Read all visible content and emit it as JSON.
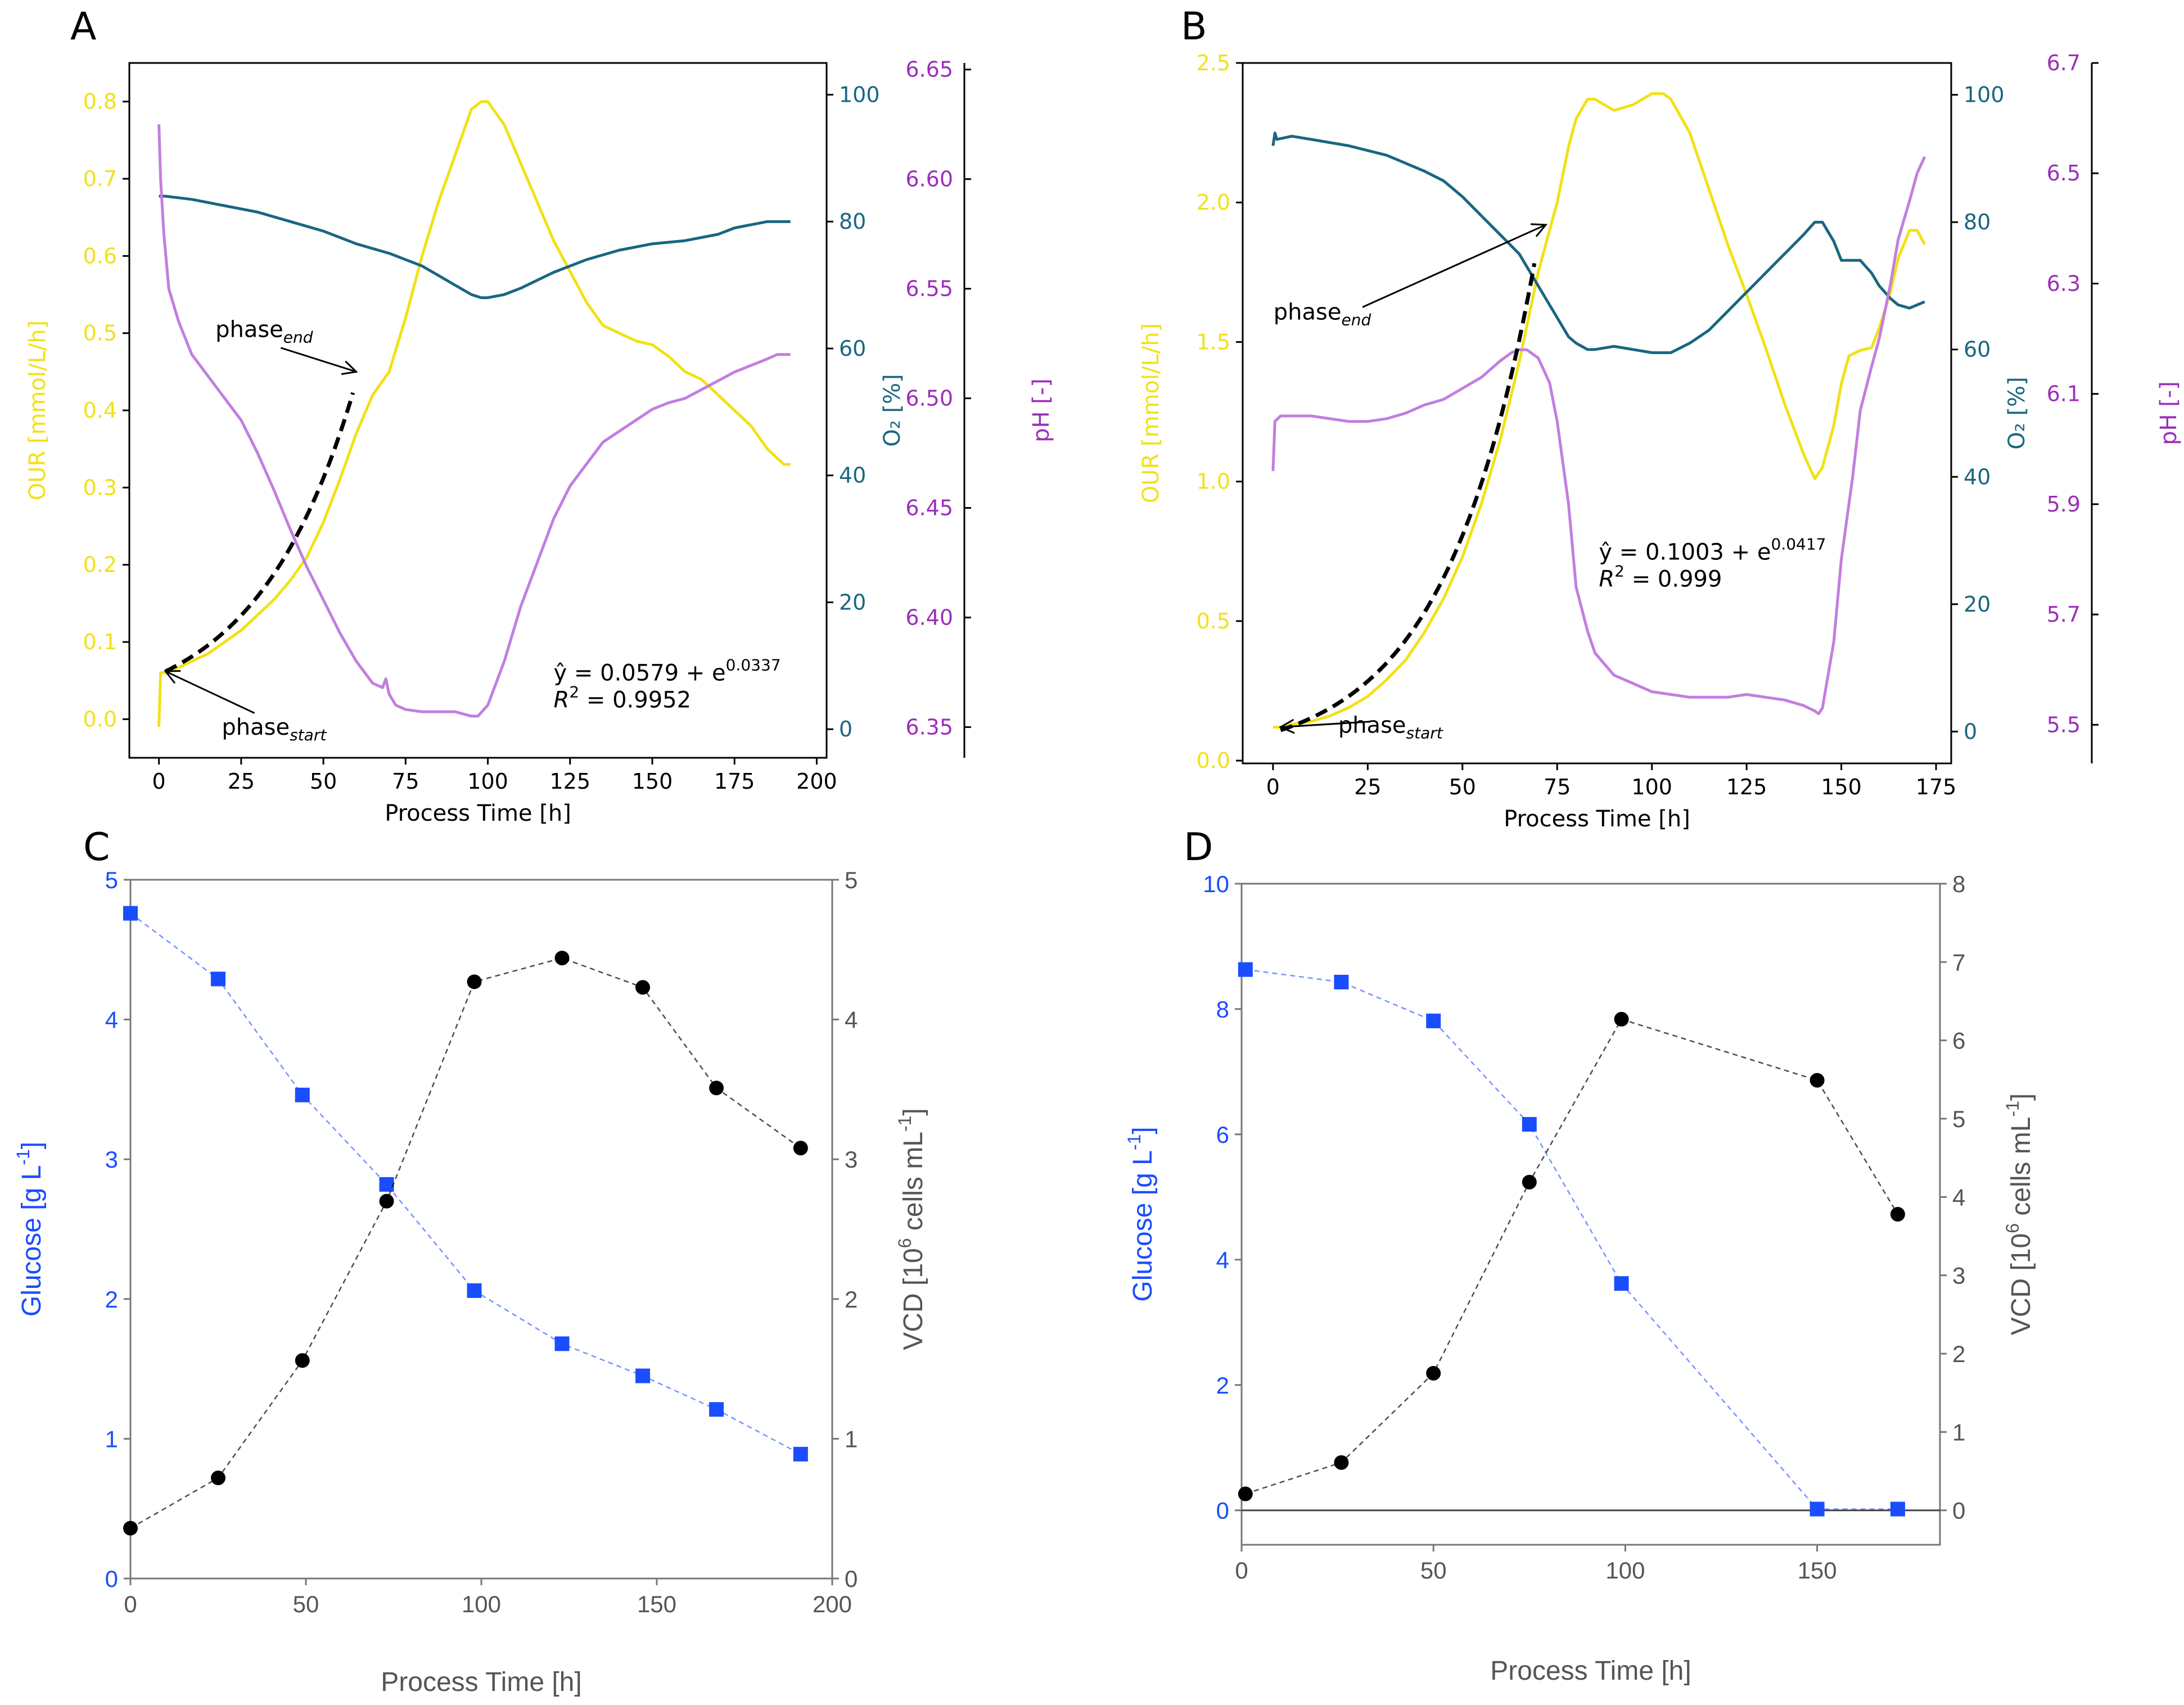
{
  "figure": {
    "panel_labels": [
      "A",
      "B",
      "C",
      "D"
    ]
  },
  "colors": {
    "our": "#f2e116",
    "o2": "#1a6680",
    "ph": "#c27ee0",
    "ph_axis": "#9b2fb9",
    "glucose": "#1a4dff",
    "vcd": "#000000",
    "vcd_axis": "#555555",
    "fit": "#000000"
  },
  "chart_data": [
    {
      "panel": "A",
      "type": "line",
      "xlabel": "Process Time [h]",
      "ylabel_left": "OUR [mmol/L/h]",
      "ylabel_right1": "O₂ [%]",
      "ylabel_right2": "pH [-]",
      "xlim": [
        -9,
        203
      ],
      "ylim_left": [
        -0.05,
        0.85
      ],
      "ylim_right1": [
        -4.5,
        105
      ],
      "ylim_right2": [
        6.336,
        6.653
      ],
      "xticks": [
        "0",
        "25",
        "50",
        "75",
        "100",
        "125",
        "150",
        "175",
        "200"
      ],
      "xtick_values": [
        0,
        25,
        50,
        75,
        100,
        125,
        150,
        175,
        200
      ],
      "yticks_left": [
        "0.0",
        "0.1",
        "0.2",
        "0.3",
        "0.4",
        "0.5",
        "0.6",
        "0.7",
        "0.8"
      ],
      "ytick_values_left": [
        0,
        0.1,
        0.2,
        0.3,
        0.4,
        0.5,
        0.6,
        0.7,
        0.8
      ],
      "yticks_right1": [
        "0",
        "20",
        "40",
        "60",
        "80",
        "100"
      ],
      "ytick_values_right1": [
        0,
        20,
        40,
        60,
        80,
        100
      ],
      "yticks_right2": [
        "6.35",
        "6.40",
        "6.45",
        "6.50",
        "6.55",
        "6.60",
        "6.65"
      ],
      "ytick_values_right2": [
        6.35,
        6.4,
        6.45,
        6.5,
        6.55,
        6.6,
        6.65
      ],
      "series": [
        {
          "name": "OUR",
          "axis": "left",
          "x": [
            0,
            0.5,
            2,
            5,
            10,
            15,
            20,
            25,
            30,
            35,
            40,
            45,
            50,
            55,
            60,
            65,
            70,
            75,
            80,
            85,
            90,
            95,
            98,
            100,
            105,
            110,
            115,
            120,
            125,
            130,
            135,
            140,
            145,
            150,
            155,
            160,
            165,
            170,
            175,
            180,
            185,
            190,
            192
          ],
          "values": [
            -0.01,
            0.06,
            0.06,
            0.065,
            0.075,
            0.085,
            0.1,
            0.115,
            0.135,
            0.155,
            0.18,
            0.21,
            0.255,
            0.31,
            0.37,
            0.42,
            0.45,
            0.52,
            0.6,
            0.67,
            0.73,
            0.79,
            0.8,
            0.8,
            0.77,
            0.72,
            0.67,
            0.62,
            0.58,
            0.54,
            0.51,
            0.5,
            0.49,
            0.485,
            0.47,
            0.45,
            0.44,
            0.42,
            0.4,
            0.38,
            0.35,
            0.33,
            0.33
          ]
        },
        {
          "name": "O2",
          "axis": "right1",
          "x": [
            0,
            2,
            10,
            20,
            30,
            40,
            50,
            60,
            70,
            80,
            85,
            90,
            95,
            98,
            100,
            105,
            110,
            120,
            130,
            140,
            150,
            160,
            170,
            175,
            180,
            185,
            190,
            192
          ],
          "values": [
            84,
            84,
            83.5,
            82.5,
            81.5,
            80,
            78.5,
            76.5,
            75,
            73,
            71.5,
            70,
            68.5,
            68,
            68,
            68.5,
            69.5,
            72,
            74,
            75.5,
            76.5,
            77,
            78,
            79,
            79.5,
            80,
            80,
            80
          ]
        },
        {
          "name": "pH",
          "axis": "right2",
          "x": [
            0,
            0.5,
            1.5,
            3,
            6,
            10,
            15,
            20,
            25,
            30,
            35,
            40,
            45,
            50,
            55,
            60,
            65,
            68,
            69,
            70,
            72,
            75,
            80,
            85,
            90,
            95,
            97,
            100,
            105,
            110,
            115,
            120,
            125,
            130,
            135,
            140,
            145,
            150,
            155,
            160,
            165,
            170,
            175,
            180,
            185,
            188,
            190,
            192
          ],
          "values": [
            6.625,
            6.6,
            6.575,
            6.55,
            6.535,
            6.52,
            6.51,
            6.5,
            6.49,
            6.475,
            6.458,
            6.44,
            6.423,
            6.408,
            6.393,
            6.38,
            6.37,
            6.368,
            6.372,
            6.365,
            6.36,
            6.358,
            6.357,
            6.357,
            6.357,
            6.355,
            6.355,
            6.36,
            6.38,
            6.405,
            6.425,
            6.445,
            6.46,
            6.47,
            6.48,
            6.485,
            6.49,
            6.495,
            6.498,
            6.5,
            6.504,
            6.508,
            6.512,
            6.515,
            6.518,
            6.52,
            6.52,
            6.52
          ]
        },
        {
          "name": "exponential fit",
          "axis": "left",
          "dashed": true,
          "x_range": [
            2,
            59
          ],
          "a": 0.0579,
          "b": 0.0337
        }
      ],
      "annotations": {
        "phase_end": {
          "label": "phase",
          "subscript": "end",
          "xy": [
            60,
            0.45
          ],
          "text_xy": [
            32,
            0.495
          ]
        },
        "phase_start": {
          "label": "phase",
          "subscript": "start",
          "xy": [
            2,
            0.062
          ],
          "text_xy": [
            35,
            -0.02
          ]
        },
        "equation": {
          "text": "ŷ = 0.0579 + e",
          "exponent": "0.0337",
          "r2_label": "R",
          "r2_value": " = 0.9952",
          "pos": [
            120,
            0.05
          ]
        }
      }
    },
    {
      "panel": "B",
      "type": "line",
      "xlabel": "Process Time [h]",
      "ylabel_left": "OUR [mmol/L/h]",
      "ylabel_right1": "O₂ [%]",
      "ylabel_right2": "pH [-]",
      "xlim": [
        -8,
        179
      ],
      "ylim_left": [
        -0.01,
        2.5
      ],
      "ylim_right1": [
        -5,
        105
      ],
      "ylim_right2": [
        5.43,
        6.7
      ],
      "xticks": [
        "0",
        "25",
        "50",
        "75",
        "100",
        "125",
        "150",
        "175"
      ],
      "xtick_values": [
        0,
        25,
        50,
        75,
        100,
        125,
        150,
        175
      ],
      "yticks_left": [
        "0.0",
        "0.5",
        "1.0",
        "1.5",
        "2.0",
        "2.5"
      ],
      "ytick_values_left": [
        0,
        0.5,
        1.0,
        1.5,
        2.0,
        2.5
      ],
      "yticks_right1": [
        "0",
        "20",
        "40",
        "60",
        "80",
        "100"
      ],
      "ytick_values_right1": [
        0,
        20,
        40,
        60,
        80,
        100
      ],
      "yticks_right2": [
        "5.5",
        "5.7",
        "5.9",
        "6.1",
        "6.3",
        "6.5",
        "6.7"
      ],
      "ytick_values_right2": [
        5.5,
        5.7,
        5.9,
        6.1,
        6.3,
        6.5,
        6.7
      ],
      "series": [
        {
          "name": "OUR",
          "axis": "left",
          "x": [
            0,
            2,
            5,
            10,
            15,
            20,
            25,
            30,
            35,
            40,
            45,
            50,
            55,
            60,
            65,
            70,
            72,
            75,
            78,
            80,
            83,
            85,
            90,
            95,
            100,
            103,
            105,
            110,
            115,
            120,
            125,
            130,
            135,
            140,
            143,
            145,
            148,
            150,
            152,
            155,
            158,
            160,
            163,
            165,
            168,
            170,
            172
          ],
          "values": [
            0.12,
            0.12,
            0.13,
            0.14,
            0.16,
            0.19,
            0.23,
            0.29,
            0.36,
            0.46,
            0.58,
            0.73,
            0.92,
            1.15,
            1.43,
            1.75,
            1.85,
            2.0,
            2.2,
            2.3,
            2.37,
            2.37,
            2.33,
            2.35,
            2.39,
            2.39,
            2.37,
            2.25,
            2.05,
            1.85,
            1.67,
            1.48,
            1.28,
            1.1,
            1.01,
            1.05,
            1.2,
            1.35,
            1.45,
            1.47,
            1.48,
            1.55,
            1.68,
            1.8,
            1.9,
            1.9,
            1.85
          ]
        },
        {
          "name": "O2",
          "axis": "right1",
          "x": [
            0,
            0.5,
            1,
            5,
            10,
            20,
            30,
            40,
            45,
            50,
            55,
            60,
            65,
            70,
            72,
            75,
            78,
            80,
            83,
            85,
            90,
            95,
            100,
            105,
            110,
            115,
            120,
            125,
            130,
            135,
            140,
            143,
            145,
            148,
            150,
            152,
            155,
            158,
            160,
            163,
            165,
            168,
            170,
            172
          ],
          "values": [
            92,
            94,
            93,
            93.5,
            93,
            92,
            90.5,
            88,
            86.5,
            84,
            81,
            78,
            75,
            70,
            68,
            65,
            62,
            61,
            60,
            60,
            60.5,
            60,
            59.5,
            59.5,
            61,
            63,
            66,
            69,
            72,
            75,
            78,
            80,
            80,
            77,
            74,
            74,
            74,
            72,
            70,
            68,
            67,
            66.5,
            67,
            67.5
          ]
        },
        {
          "name": "pH",
          "axis": "right2",
          "x": [
            0,
            0.5,
            2,
            5,
            10,
            15,
            20,
            25,
            30,
            35,
            40,
            45,
            50,
            55,
            60,
            63,
            65,
            67,
            70,
            73,
            75,
            78,
            80,
            83,
            85,
            90,
            95,
            100,
            105,
            110,
            115,
            120,
            125,
            130,
            135,
            140,
            143,
            144,
            145,
            148,
            150,
            153,
            155,
            158,
            160,
            163,
            165,
            168,
            170,
            172
          ],
          "values": [
            5.96,
            6.05,
            6.06,
            6.06,
            6.06,
            6.055,
            6.05,
            6.05,
            6.055,
            6.065,
            6.08,
            6.09,
            6.11,
            6.13,
            6.16,
            6.175,
            6.18,
            6.18,
            6.165,
            6.12,
            6.05,
            5.9,
            5.75,
            5.67,
            5.63,
            5.59,
            5.575,
            5.56,
            5.555,
            5.55,
            5.55,
            5.55,
            5.555,
            5.55,
            5.545,
            5.535,
            5.525,
            5.52,
            5.53,
            5.65,
            5.8,
            5.95,
            6.07,
            6.15,
            6.2,
            6.3,
            6.38,
            6.45,
            6.5,
            6.53
          ]
        },
        {
          "name": "exponential fit",
          "axis": "left",
          "dashed": true,
          "x_range": [
            2,
            69
          ],
          "a": 0.1003,
          "b": 0.0417
        }
      ],
      "annotations": {
        "phase_end": {
          "label": "phase",
          "subscript": "end",
          "xy": [
            72,
            1.92
          ],
          "text_xy": [
            13,
            1.58
          ]
        },
        "phase_start": {
          "label": "phase",
          "subscript": "start",
          "xy": [
            2,
            0.12
          ],
          "text_xy": [
            31,
            0.1
          ]
        },
        "equation": {
          "text": "ŷ = 0.1003 + e",
          "exponent": "0.0417",
          "r2_label": "R",
          "r2_value": " = 0.999",
          "pos": [
            86,
            0.72
          ]
        }
      }
    },
    {
      "panel": "C",
      "type": "scatter",
      "xlabel": "Process Time [h]",
      "ylabel_left": "Glucose [g L",
      "ylabel_left_sup": "-1",
      "ylabel_left_end": "]",
      "ylabel_right_pre": "VCD [10",
      "ylabel_right_sup": "6",
      "ylabel_right_post": " cells mL",
      "ylabel_right_sup2": "-1",
      "ylabel_right_end": "]",
      "xlim": [
        0,
        200
      ],
      "ylim_left": [
        0,
        5
      ],
      "ylim_right": [
        0,
        5
      ],
      "xticks": [
        "0",
        "50",
        "100",
        "150",
        "200"
      ],
      "xtick_values": [
        0,
        50,
        100,
        150,
        200
      ],
      "yticks_left": [
        "0",
        "1",
        "2",
        "3",
        "4",
        "5"
      ],
      "ytick_values_left": [
        0,
        1,
        2,
        3,
        4,
        5
      ],
      "yticks_right": [
        "0",
        "1",
        "2",
        "3",
        "4",
        "5"
      ],
      "ytick_values_right": [
        0,
        1,
        2,
        3,
        4,
        5
      ],
      "series": [
        {
          "name": "Glucose",
          "axis": "left",
          "marker": "square",
          "x": [
            0,
            25,
            49,
            73,
            98,
            123,
            146,
            167,
            191
          ],
          "values": [
            4.76,
            4.29,
            3.46,
            2.82,
            2.06,
            1.68,
            1.45,
            1.21,
            0.89
          ]
        },
        {
          "name": "VCD",
          "axis": "right",
          "marker": "circle",
          "x": [
            0,
            25,
            49,
            73,
            98,
            123,
            146,
            167,
            191
          ],
          "values": [
            0.36,
            0.72,
            1.56,
            2.7,
            4.27,
            4.44,
            4.23,
            3.51,
            3.08
          ]
        }
      ]
    },
    {
      "panel": "D",
      "type": "scatter",
      "xlabel": "Process Time [h]",
      "ylabel_left": "Glucose [g L",
      "ylabel_left_sup": "-1",
      "ylabel_left_end": "]",
      "ylabel_right_pre": "VCD [10",
      "ylabel_right_sup": "6",
      "ylabel_right_post": " cells mL",
      "ylabel_right_sup2": "-1",
      "ylabel_right_end": "]",
      "xlim": [
        0,
        182
      ],
      "ylim_left": [
        -0.55,
        10
      ],
      "ylim_right": [
        -0.44,
        8
      ],
      "xticks": [
        "0",
        "50",
        "100",
        "150"
      ],
      "xtick_values": [
        0,
        50,
        100,
        150
      ],
      "yticks_left": [
        "0",
        "2",
        "4",
        "6",
        "8",
        "10"
      ],
      "ytick_values_left": [
        0,
        2,
        4,
        6,
        8,
        10
      ],
      "yticks_right": [
        "0",
        "1",
        "2",
        "3",
        "4",
        "5",
        "6",
        "7",
        "8"
      ],
      "ytick_values_right": [
        0,
        1,
        2,
        3,
        4,
        5,
        6,
        7,
        8
      ],
      "series": [
        {
          "name": "Glucose",
          "axis": "left",
          "marker": "square",
          "x": [
            1,
            26,
            50,
            75,
            99,
            150,
            171
          ],
          "values": [
            8.63,
            8.43,
            7.81,
            6.16,
            3.62,
            0.02,
            0.02
          ]
        },
        {
          "name": "VCD",
          "axis": "right",
          "marker": "circle",
          "x": [
            1,
            26,
            50,
            75,
            99,
            150,
            171
          ],
          "values": [
            0.21,
            0.61,
            1.75,
            4.19,
            6.27,
            5.49,
            3.78
          ]
        }
      ]
    }
  ]
}
